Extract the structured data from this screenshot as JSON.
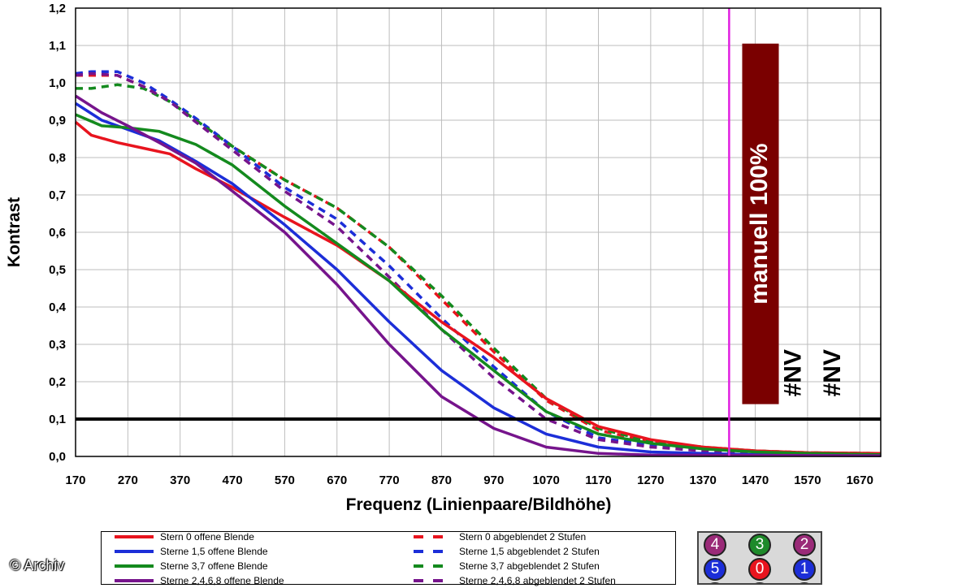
{
  "chart_data": {
    "type": "line",
    "title": "",
    "xlabel": "Frequenz (Linienpaare/Bildhöhe)",
    "ylabel": "Kontrast",
    "xlim": [
      170,
      1710
    ],
    "ylim": [
      0,
      1.2
    ],
    "xticks": [
      "170",
      "270",
      "370",
      "470",
      "570",
      "670",
      "770",
      "870",
      "970",
      "1070",
      "1170",
      "1270",
      "1370",
      "1470",
      "1570",
      "1670"
    ],
    "yticks": [
      "0,0",
      "0,1",
      "0,2",
      "0,3",
      "0,4",
      "0,5",
      "0,6",
      "0,7",
      "0,8",
      "0,9",
      "1,0",
      "1,1",
      "1,2"
    ],
    "grid": true,
    "reference_line": {
      "y": 0.1,
      "color": "#000000"
    },
    "vertical_marker": {
      "x": 1420,
      "color": "#e020e0"
    },
    "annotation_bar": {
      "label": "manuell 100%",
      "x_from": 1445,
      "x_to": 1515,
      "y_from": 0.14,
      "y_to": 1.105,
      "color": "#7a0000"
    },
    "na_labels": [
      {
        "text": "#NV",
        "x": 1545,
        "y": 0.16
      },
      {
        "text": "#NV",
        "x": 1620,
        "y": 0.16
      }
    ],
    "series": [
      {
        "name": "Stern 0 offene Blende",
        "color": "#e8141e",
        "dash": false,
        "points": [
          [
            170,
            0.895
          ],
          [
            200,
            0.86
          ],
          [
            250,
            0.84
          ],
          [
            300,
            0.825
          ],
          [
            350,
            0.81
          ],
          [
            400,
            0.77
          ],
          [
            470,
            0.72
          ],
          [
            570,
            0.64
          ],
          [
            670,
            0.565
          ],
          [
            770,
            0.47
          ],
          [
            870,
            0.36
          ],
          [
            970,
            0.265
          ],
          [
            1070,
            0.155
          ],
          [
            1170,
            0.08
          ],
          [
            1270,
            0.045
          ],
          [
            1370,
            0.025
          ],
          [
            1470,
            0.015
          ],
          [
            1570,
            0.01
          ],
          [
            1710,
            0.008
          ]
        ]
      },
      {
        "name": "Sterne 1,5 offene Blende",
        "color": "#1c2ed8",
        "dash": false,
        "points": [
          [
            170,
            0.945
          ],
          [
            220,
            0.9
          ],
          [
            270,
            0.875
          ],
          [
            330,
            0.845
          ],
          [
            400,
            0.79
          ],
          [
            470,
            0.73
          ],
          [
            570,
            0.62
          ],
          [
            670,
            0.5
          ],
          [
            770,
            0.36
          ],
          [
            870,
            0.23
          ],
          [
            970,
            0.13
          ],
          [
            1070,
            0.06
          ],
          [
            1170,
            0.025
          ],
          [
            1270,
            0.012
          ],
          [
            1370,
            0.008
          ],
          [
            1470,
            0.005
          ],
          [
            1710,
            0.003
          ]
        ]
      },
      {
        "name": "Sterne 3,7 offene Blende",
        "color": "#148a1e",
        "dash": false,
        "points": [
          [
            170,
            0.915
          ],
          [
            220,
            0.885
          ],
          [
            270,
            0.88
          ],
          [
            330,
            0.87
          ],
          [
            400,
            0.835
          ],
          [
            470,
            0.78
          ],
          [
            570,
            0.67
          ],
          [
            670,
            0.57
          ],
          [
            770,
            0.47
          ],
          [
            870,
            0.34
          ],
          [
            970,
            0.23
          ],
          [
            1070,
            0.12
          ],
          [
            1170,
            0.06
          ],
          [
            1270,
            0.035
          ],
          [
            1370,
            0.02
          ],
          [
            1470,
            0.012
          ],
          [
            1570,
            0.008
          ],
          [
            1710,
            0.005
          ]
        ]
      },
      {
        "name": "Sterne 2,4,6,8 offene Blende",
        "color": "#76148c",
        "dash": false,
        "points": [
          [
            170,
            0.965
          ],
          [
            220,
            0.92
          ],
          [
            270,
            0.885
          ],
          [
            330,
            0.84
          ],
          [
            400,
            0.785
          ],
          [
            470,
            0.71
          ],
          [
            570,
            0.6
          ],
          [
            670,
            0.46
          ],
          [
            770,
            0.3
          ],
          [
            870,
            0.16
          ],
          [
            970,
            0.075
          ],
          [
            1070,
            0.025
          ],
          [
            1170,
            0.008
          ],
          [
            1270,
            0.004
          ],
          [
            1710,
            0.002
          ]
        ]
      },
      {
        "name": "Stern 0 abgeblendet 2 Stufen",
        "color": "#e8141e",
        "dash": true,
        "points": [
          [
            170,
            1.02
          ],
          [
            200,
            1.02
          ],
          [
            250,
            1.02
          ],
          [
            300,
            0.99
          ],
          [
            350,
            0.95
          ],
          [
            400,
            0.9
          ],
          [
            470,
            0.83
          ],
          [
            570,
            0.74
          ],
          [
            670,
            0.665
          ],
          [
            770,
            0.56
          ],
          [
            870,
            0.42
          ],
          [
            970,
            0.28
          ],
          [
            1070,
            0.15
          ],
          [
            1170,
            0.07
          ],
          [
            1270,
            0.04
          ],
          [
            1370,
            0.025
          ],
          [
            1470,
            0.015
          ],
          [
            1570,
            0.01
          ],
          [
            1710,
            0.008
          ]
        ]
      },
      {
        "name": "Sterne 1,5 abgeblendet 2 Stufen",
        "color": "#1c2ed8",
        "dash": true,
        "points": [
          [
            170,
            1.025
          ],
          [
            200,
            1.03
          ],
          [
            250,
            1.03
          ],
          [
            300,
            1.0
          ],
          [
            350,
            0.955
          ],
          [
            400,
            0.905
          ],
          [
            470,
            0.83
          ],
          [
            570,
            0.72
          ],
          [
            670,
            0.635
          ],
          [
            770,
            0.51
          ],
          [
            870,
            0.37
          ],
          [
            970,
            0.24
          ],
          [
            1070,
            0.12
          ],
          [
            1170,
            0.05
          ],
          [
            1270,
            0.03
          ],
          [
            1370,
            0.02
          ],
          [
            1470,
            0.01
          ],
          [
            1710,
            0.005
          ]
        ]
      },
      {
        "name": "Sterne 3,7 abgeblendet 2 Stufen",
        "color": "#148a1e",
        "dash": true,
        "points": [
          [
            170,
            0.985
          ],
          [
            200,
            0.985
          ],
          [
            250,
            0.995
          ],
          [
            300,
            0.985
          ],
          [
            350,
            0.95
          ],
          [
            400,
            0.9
          ],
          [
            470,
            0.83
          ],
          [
            570,
            0.74
          ],
          [
            670,
            0.665
          ],
          [
            770,
            0.56
          ],
          [
            870,
            0.43
          ],
          [
            970,
            0.29
          ],
          [
            1070,
            0.155
          ],
          [
            1170,
            0.075
          ],
          [
            1270,
            0.04
          ],
          [
            1370,
            0.025
          ],
          [
            1470,
            0.015
          ],
          [
            1570,
            0.01
          ],
          [
            1710,
            0.008
          ]
        ]
      },
      {
        "name": "Sterne 2,4,6,8 abgeblendet 2 Stufen",
        "color": "#76148c",
        "dash": true,
        "points": [
          [
            170,
            1.02
          ],
          [
            200,
            1.025
          ],
          [
            250,
            1.02
          ],
          [
            300,
            0.99
          ],
          [
            350,
            0.95
          ],
          [
            400,
            0.895
          ],
          [
            470,
            0.82
          ],
          [
            570,
            0.71
          ],
          [
            670,
            0.615
          ],
          [
            770,
            0.48
          ],
          [
            870,
            0.34
          ],
          [
            970,
            0.21
          ],
          [
            1070,
            0.1
          ],
          [
            1170,
            0.045
          ],
          [
            1270,
            0.025
          ],
          [
            1370,
            0.015
          ],
          [
            1470,
            0.008
          ],
          [
            1710,
            0.004
          ]
        ]
      }
    ]
  },
  "legend": {
    "entries": [
      {
        "label": "Stern 0 offene Blende",
        "color": "#e8141e",
        "dash": false
      },
      {
        "label": "Sterne 1,5 offene Blende",
        "color": "#1c2ed8",
        "dash": false
      },
      {
        "label": "Sterne 3,7 offene Blende",
        "color": "#148a1e",
        "dash": false
      },
      {
        "label": "Sterne 2,4,6,8 offene Blende",
        "color": "#76148c",
        "dash": false
      },
      {
        "label": "Stern 0 abgeblendet 2 Stufen",
        "color": "#e8141e",
        "dash": true
      },
      {
        "label": "Sterne 1,5 abgeblendet 2 Stufen",
        "color": "#1c2ed8",
        "dash": true
      },
      {
        "label": "Sterne 3,7 abgeblendet 2 Stufen",
        "color": "#148a1e",
        "dash": true
      },
      {
        "label": "Sterne 2,4,6,8 abgeblendet 2 Stufen",
        "color": "#76148c",
        "dash": true
      }
    ]
  },
  "star_key": {
    "dots": [
      {
        "label": "4",
        "color": "#9a2a78"
      },
      {
        "label": "3",
        "color": "#1e8a2a"
      },
      {
        "label": "2",
        "color": "#9a2a78"
      },
      {
        "label": "5",
        "color": "#1c2ed8"
      },
      {
        "label": "0",
        "color": "#e8141e"
      },
      {
        "label": "1",
        "color": "#1c2ed8"
      },
      {
        "label": "",
        "color": "#9a2a78"
      },
      {
        "label": "",
        "color": "#1e8a2a"
      },
      {
        "label": "",
        "color": "#9a2a78"
      }
    ]
  },
  "credit": "© Archiv"
}
